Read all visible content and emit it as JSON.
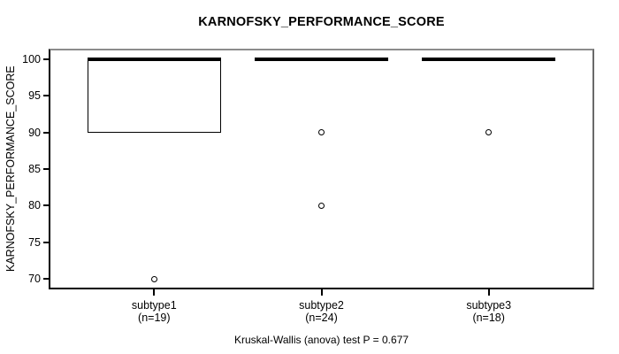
{
  "chart_data": {
    "type": "boxplot",
    "title": "KARNOFSKY_PERFORMANCE_SCORE",
    "ylabel": "KARNOFSKY_PERFORMANCE_SCORE",
    "footer": "Kruskal-Wallis (anova) test P = 0.677",
    "ylim": [
      68.8,
      101.2
    ],
    "xlim": [
      0.38,
      3.62
    ],
    "yticks": [
      70,
      75,
      80,
      85,
      90,
      95,
      100
    ],
    "box_width": 0.8,
    "grid": false,
    "groups": [
      {
        "label": "subtype1",
        "n_label": "(n=19)",
        "position": 1,
        "q1": 90,
        "median": 100,
        "q3": 100,
        "whisker_low": 90,
        "whisker_high": 100,
        "outliers": [
          70
        ]
      },
      {
        "label": "subtype2",
        "n_label": "(n=24)",
        "position": 2,
        "q1": 100,
        "median": 100,
        "q3": 100,
        "whisker_low": 100,
        "whisker_high": 100,
        "outliers": [
          90,
          80
        ]
      },
      {
        "label": "subtype3",
        "n_label": "(n=18)",
        "position": 3,
        "q1": 100,
        "median": 100,
        "q3": 100,
        "whisker_low": 100,
        "whisker_high": 100,
        "outliers": [
          90
        ]
      }
    ],
    "colors": {
      "marks": "#000000",
      "frame_top": "#8c8c8c",
      "frame_right": "#6a6a6a",
      "frame_dark": "#000000",
      "background": "#ffffff",
      "text": "#000000"
    }
  }
}
